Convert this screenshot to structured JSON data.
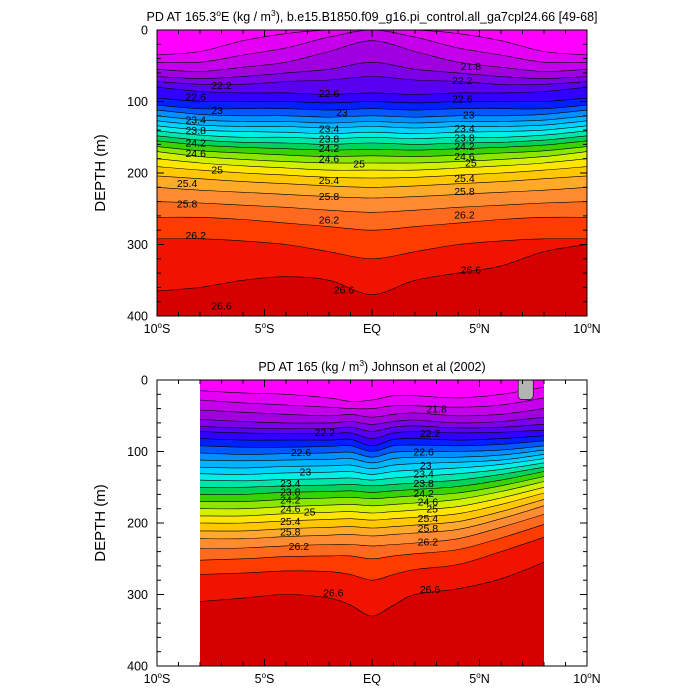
{
  "chart_data": [
    {
      "type": "contour",
      "title_parts": [
        "PD AT 165.3",
        "o",
        "E (kg / m",
        "3",
        "), b.e15.B1850.f09_g16.pi_control.all_ga7cpl24.66 [49-68]"
      ],
      "ylabel": "DEPTH (m)",
      "xlim": [
        -10,
        10
      ],
      "ylim": [
        0,
        400
      ],
      "data_xlim": [
        -10,
        10
      ],
      "x_ticks": [
        {
          "x": -10,
          "label": "10",
          "suffix": "S"
        },
        {
          "x": -5,
          "label": "5",
          "suffix": "S"
        },
        {
          "x": 0,
          "label": "EQ",
          "suffix": ""
        },
        {
          "x": 5,
          "label": "5",
          "suffix": "N"
        },
        {
          "x": 10,
          "label": "10",
          "suffix": "N"
        }
      ],
      "y_ticks": [
        0,
        100,
        200,
        300,
        400
      ],
      "levels": [
        21.8,
        22.0,
        22.2,
        22.4,
        22.6,
        22.8,
        23.0,
        23.2,
        23.4,
        23.6,
        23.8,
        24.0,
        24.2,
        24.4,
        24.6,
        24.8,
        25.0,
        25.2,
        25.4,
        25.6,
        25.8,
        26.0,
        26.2,
        26.4,
        26.6
      ],
      "contour_depths": {
        "x": [
          -10,
          -8,
          -6,
          -4,
          -2,
          0,
          2,
          4,
          6,
          8,
          10
        ],
        "depths": [
          [
            35,
            30,
            15,
            5,
            0,
            0,
            0,
            5,
            15,
            30,
            35
          ],
          [
            45,
            45,
            35,
            25,
            10,
            0,
            10,
            25,
            35,
            45,
            45
          ],
          [
            55,
            58,
            52,
            45,
            30,
            15,
            30,
            45,
            52,
            58,
            55
          ],
          [
            65,
            68,
            65,
            60,
            55,
            45,
            55,
            60,
            65,
            68,
            65
          ],
          [
            72,
            76,
            76,
            72,
            70,
            65,
            70,
            72,
            76,
            76,
            72
          ],
          [
            80,
            86,
            88,
            88,
            90,
            88,
            90,
            88,
            88,
            86,
            80
          ],
          [
            95,
            100,
            100,
            100,
            102,
            100,
            102,
            100,
            100,
            100,
            95
          ],
          [
            105,
            110,
            110,
            110,
            112,
            110,
            112,
            110,
            110,
            110,
            105
          ],
          [
            112,
            118,
            120,
            120,
            122,
            120,
            122,
            120,
            120,
            118,
            112
          ],
          [
            120,
            126,
            128,
            128,
            130,
            128,
            130,
            128,
            128,
            126,
            120
          ],
          [
            127,
            133,
            135,
            135,
            137,
            135,
            137,
            135,
            135,
            133,
            127
          ],
          [
            134,
            140,
            142,
            143,
            145,
            143,
            145,
            143,
            142,
            140,
            134
          ],
          [
            141,
            147,
            150,
            150,
            152,
            150,
            152,
            150,
            150,
            147,
            141
          ],
          [
            148,
            154,
            157,
            158,
            160,
            158,
            160,
            158,
            157,
            154,
            148
          ],
          [
            155,
            161,
            164,
            166,
            168,
            167,
            168,
            166,
            164,
            161,
            155
          ],
          [
            163,
            169,
            172,
            175,
            177,
            176,
            177,
            175,
            172,
            169,
            163
          ],
          [
            170,
            177,
            181,
            184,
            186,
            186,
            186,
            184,
            181,
            177,
            170
          ],
          [
            180,
            186,
            190,
            193,
            196,
            196,
            196,
            193,
            190,
            186,
            180
          ],
          [
            191,
            196,
            200,
            203,
            206,
            207,
            206,
            203,
            200,
            196,
            191
          ],
          [
            204,
            208,
            212,
            215,
            218,
            220,
            218,
            215,
            212,
            208,
            204
          ],
          [
            220,
            224,
            227,
            230,
            233,
            235,
            233,
            230,
            227,
            224,
            220
          ],
          [
            240,
            242,
            245,
            248,
            252,
            255,
            252,
            248,
            245,
            242,
            240
          ],
          [
            262,
            262,
            265,
            270,
            275,
            280,
            275,
            270,
            265,
            262,
            262
          ],
          [
            292,
            292,
            295,
            300,
            310,
            320,
            310,
            300,
            295,
            292,
            292
          ],
          [
            365,
            360,
            350,
            345,
            350,
            370,
            350,
            340,
            330,
            310,
            300
          ]
        ]
      },
      "contour_labels": [
        {
          "text": "21.8",
          "x": 4.6,
          "y": 50
        },
        {
          "text": "22.2",
          "x": -7,
          "y": 77
        },
        {
          "text": "22.2",
          "x": 4.2,
          "y": 70
        },
        {
          "text": "22.6",
          "x": -8.2,
          "y": 93
        },
        {
          "text": "22.6",
          "x": -2,
          "y": 88
        },
        {
          "text": "22.6",
          "x": 4.2,
          "y": 96
        },
        {
          "text": "23",
          "x": -7.2,
          "y": 112
        },
        {
          "text": "23",
          "x": -1.4,
          "y": 115
        },
        {
          "text": "23",
          "x": 4.5,
          "y": 118
        },
        {
          "text": "23.4",
          "x": -8.2,
          "y": 125
        },
        {
          "text": "23.8",
          "x": -8.2,
          "y": 140
        },
        {
          "text": "24.2",
          "x": -8.2,
          "y": 157
        },
        {
          "text": "24.6",
          "x": -8.2,
          "y": 172
        },
        {
          "text": "23.4",
          "x": -2,
          "y": 138
        },
        {
          "text": "23.8",
          "x": -2,
          "y": 152
        },
        {
          "text": "24.2",
          "x": -2,
          "y": 165
        },
        {
          "text": "24.6",
          "x": -2,
          "y": 180
        },
        {
          "text": "25",
          "x": -0.6,
          "y": 187
        },
        {
          "text": "23.4",
          "x": 4.3,
          "y": 137
        },
        {
          "text": "23.8",
          "x": 4.3,
          "y": 150
        },
        {
          "text": "24.2",
          "x": 4.3,
          "y": 162
        },
        {
          "text": "24.6",
          "x": 4.3,
          "y": 176
        },
        {
          "text": "25",
          "x": 4.6,
          "y": 185
        },
        {
          "text": "25",
          "x": -7.2,
          "y": 195
        },
        {
          "text": "25.4",
          "x": -8.6,
          "y": 214
        },
        {
          "text": "25.4",
          "x": -2,
          "y": 210
        },
        {
          "text": "25.4",
          "x": 4.3,
          "y": 207
        },
        {
          "text": "25.8",
          "x": -8.6,
          "y": 243
        },
        {
          "text": "25.8",
          "x": -2,
          "y": 232
        },
        {
          "text": "25.8",
          "x": 4.3,
          "y": 225
        },
        {
          "text": "26.2",
          "x": -2,
          "y": 265
        },
        {
          "text": "26.2",
          "x": 4.3,
          "y": 258
        },
        {
          "text": "26.2",
          "x": -8.2,
          "y": 287
        },
        {
          "text": "26.6",
          "x": -1.3,
          "y": 363
        },
        {
          "text": "26.6",
          "x": 4.6,
          "y": 335
        },
        {
          "text": "26.6",
          "x": -7,
          "y": 385
        }
      ]
    },
    {
      "type": "contour",
      "title_parts": [
        "PD AT 165 (kg / m",
        "3",
        ") Johnson et al (2002)"
      ],
      "ylabel": "DEPTH (m)",
      "xlim": [
        -10,
        10
      ],
      "ylim": [
        0,
        400
      ],
      "data_xlim": [
        -8,
        8
      ],
      "missing_patch": {
        "x": [
          6.8,
          7.5
        ],
        "y": [
          0,
          30
        ]
      },
      "x_ticks": [
        {
          "x": -10,
          "label": "10",
          "suffix": "S"
        },
        {
          "x": -5,
          "label": "5",
          "suffix": "S"
        },
        {
          "x": 0,
          "label": "EQ",
          "suffix": ""
        },
        {
          "x": 5,
          "label": "5",
          "suffix": "N"
        },
        {
          "x": 10,
          "label": "10",
          "suffix": "N"
        }
      ],
      "y_ticks": [
        0,
        100,
        200,
        300,
        400
      ],
      "levels": [
        21.8,
        22.0,
        22.2,
        22.4,
        22.6,
        22.8,
        23.0,
        23.2,
        23.4,
        23.6,
        23.8,
        24.0,
        24.2,
        24.4,
        24.6,
        24.8,
        25.0,
        25.2,
        25.4,
        25.6,
        25.8,
        26.0,
        26.2,
        26.4,
        26.6
      ],
      "contour_depths": {
        "x": [
          -8,
          -6,
          -4,
          -2,
          -1,
          0,
          1,
          2,
          4,
          6,
          8
        ],
        "depths": [
          [
            15,
            18,
            20,
            25,
            30,
            28,
            22,
            22,
            25,
            20,
            10
          ],
          [
            28,
            32,
            35,
            38,
            40,
            40,
            36,
            36,
            38,
            35,
            25
          ],
          [
            42,
            45,
            48,
            50,
            48,
            52,
            48,
            46,
            50,
            48,
            40
          ],
          [
            55,
            58,
            60,
            60,
            58,
            62,
            58,
            56,
            60,
            58,
            52
          ],
          [
            65,
            67,
            68,
            68,
            66,
            72,
            66,
            64,
            67,
            66,
            62
          ],
          [
            72,
            74,
            75,
            75,
            74,
            82,
            74,
            72,
            74,
            73,
            70
          ],
          [
            82,
            84,
            84,
            84,
            83,
            92,
            83,
            82,
            84,
            82,
            78
          ],
          [
            92,
            94,
            94,
            93,
            92,
            100,
            92,
            91,
            92,
            90,
            85
          ],
          [
            102,
            104,
            103,
            102,
            101,
            108,
            101,
            100,
            100,
            98,
            92
          ],
          [
            112,
            113,
            112,
            111,
            110,
            116,
            110,
            108,
            108,
            105,
            98
          ],
          [
            122,
            123,
            121,
            120,
            119,
            124,
            119,
            117,
            115,
            112,
            104
          ],
          [
            131,
            132,
            130,
            129,
            128,
            132,
            128,
            126,
            123,
            118,
            110
          ],
          [
            140,
            141,
            139,
            138,
            137,
            140,
            137,
            135,
            131,
            125,
            116
          ],
          [
            150,
            150,
            148,
            147,
            146,
            148,
            146,
            144,
            140,
            132,
            122
          ],
          [
            160,
            160,
            157,
            156,
            155,
            157,
            155,
            153,
            149,
            140,
            128
          ],
          [
            170,
            170,
            167,
            165,
            164,
            166,
            164,
            162,
            158,
            148,
            135
          ],
          [
            180,
            180,
            177,
            175,
            174,
            176,
            174,
            172,
            167,
            156,
            142
          ],
          [
            190,
            190,
            187,
            185,
            184,
            186,
            184,
            182,
            177,
            165,
            150
          ],
          [
            200,
            200,
            197,
            195,
            194,
            196,
            194,
            192,
            187,
            174,
            158
          ],
          [
            211,
            211,
            208,
            206,
            205,
            207,
            205,
            203,
            198,
            184,
            167
          ],
          [
            222,
            222,
            219,
            217,
            216,
            218,
            216,
            214,
            209,
            194,
            176
          ],
          [
            236,
            235,
            232,
            230,
            230,
            232,
            230,
            228,
            222,
            206,
            188
          ],
          [
            252,
            250,
            247,
            246,
            246,
            250,
            246,
            243,
            237,
            221,
            202
          ],
          [
            272,
            270,
            267,
            268,
            272,
            280,
            272,
            265,
            258,
            240,
            220
          ],
          [
            310,
            305,
            300,
            305,
            315,
            330,
            315,
            300,
            292,
            278,
            255
          ]
        ]
      },
      "contour_labels": [
        {
          "text": "21.8",
          "x": 3.0,
          "y": 40
        },
        {
          "text": "22.2",
          "x": -2.2,
          "y": 73
        },
        {
          "text": "22.2",
          "x": 2.7,
          "y": 74
        },
        {
          "text": "22.6",
          "x": -3.3,
          "y": 101
        },
        {
          "text": "22.6",
          "x": 2.4,
          "y": 100
        },
        {
          "text": "23",
          "x": -3.1,
          "y": 128
        },
        {
          "text": "23",
          "x": 2.5,
          "y": 119
        },
        {
          "text": "23.4",
          "x": -3.8,
          "y": 144
        },
        {
          "text": "23.8",
          "x": -3.8,
          "y": 156
        },
        {
          "text": "24.2",
          "x": -3.8,
          "y": 167
        },
        {
          "text": "24.6",
          "x": -3.8,
          "y": 180
        },
        {
          "text": "25",
          "x": -2.9,
          "y": 184
        },
        {
          "text": "25.4",
          "x": -3.8,
          "y": 197
        },
        {
          "text": "25.8",
          "x": -3.8,
          "y": 212
        },
        {
          "text": "26.2",
          "x": -3.4,
          "y": 232
        },
        {
          "text": "23.4",
          "x": 2.4,
          "y": 131
        },
        {
          "text": "23.8",
          "x": 2.4,
          "y": 144
        },
        {
          "text": "24.2",
          "x": 2.4,
          "y": 158
        },
        {
          "text": "24.6",
          "x": 2.6,
          "y": 170
        },
        {
          "text": "25",
          "x": 2.8,
          "y": 180
        },
        {
          "text": "25.4",
          "x": 2.6,
          "y": 193
        },
        {
          "text": "25.8",
          "x": 2.6,
          "y": 207
        },
        {
          "text": "26.2",
          "x": 2.6,
          "y": 226
        },
        {
          "text": "26.6",
          "x": -1.8,
          "y": 297
        },
        {
          "text": "26.6",
          "x": 2.7,
          "y": 292
        }
      ]
    }
  ]
}
